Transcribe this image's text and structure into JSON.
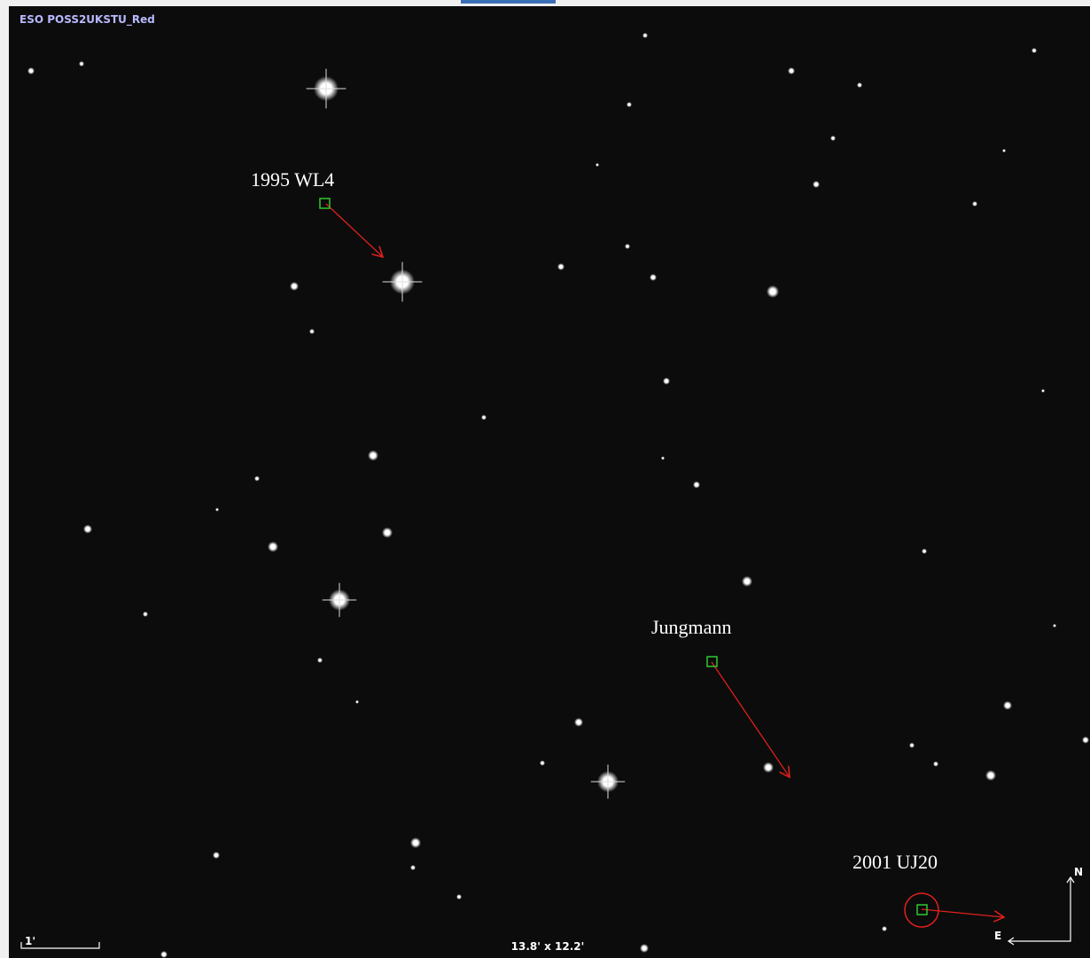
{
  "image": {
    "survey": "ESO POSS2UKSTU_Red",
    "field_size": "13.8' x 12.2'",
    "scale_bar": "1'"
  },
  "objects": [
    {
      "label": "1995 WL4"
    },
    {
      "label": "Jungmann"
    },
    {
      "label": "2001 UJ20"
    }
  ],
  "compass": {
    "north": "N",
    "east": "E"
  }
}
